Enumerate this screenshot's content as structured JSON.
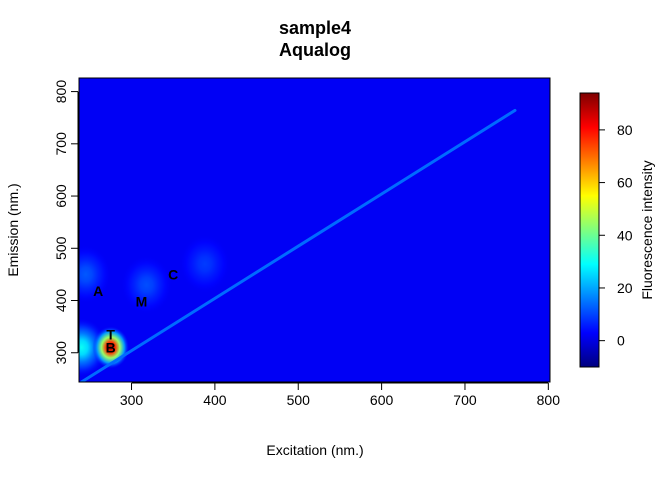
{
  "chart_data": {
    "type": "heatmap",
    "title": "sample4",
    "subtitle": "Aqualog",
    "xlabel": "Excitation (nm.)",
    "ylabel": "Emission (nm.)",
    "xlim": [
      237,
      802
    ],
    "ylim": [
      244,
      826
    ],
    "x_ticks": [
      300,
      400,
      500,
      600,
      700,
      800
    ],
    "y_ticks": [
      300,
      400,
      500,
      600,
      700,
      800
    ],
    "colorbar": {
      "label": "Fluorescence intensity",
      "range": [
        -10,
        94
      ],
      "ticks": [
        0,
        20,
        40,
        60,
        80
      ],
      "colors": [
        "#00007F",
        "#0000FF",
        "#007FFF",
        "#00FFFF",
        "#7FFF7F",
        "#FFFF00",
        "#FF7F00",
        "#FF0000",
        "#7F0000"
      ]
    },
    "background_intensity": 2,
    "peaks": [
      {
        "label": "A",
        "ex": 260,
        "em": 418,
        "intensity": 14
      },
      {
        "label": "B",
        "ex": 275,
        "em": 310,
        "intensity": 92
      },
      {
        "label": "T",
        "ex": 275,
        "em": 335,
        "intensity": 20
      },
      {
        "label": "M",
        "ex": 312,
        "em": 398,
        "intensity": 12
      },
      {
        "label": "C",
        "ex": 350,
        "em": 450,
        "intensity": 14
      }
    ],
    "features": [
      {
        "ex": 240,
        "em": 310,
        "intensity": 30
      },
      {
        "ex": 245,
        "em": 450,
        "intensity": 12
      },
      {
        "ex": 275,
        "em": 310,
        "intensity": 92
      },
      {
        "ex": 318,
        "em": 430,
        "intensity": 11
      },
      {
        "ex": 388,
        "em": 470,
        "intensity": 9
      }
    ],
    "scatter_line": {
      "points": [
        [
          240,
          244
        ],
        [
          500,
          504
        ],
        [
          760,
          764
        ]
      ],
      "intensity": 14
    }
  }
}
